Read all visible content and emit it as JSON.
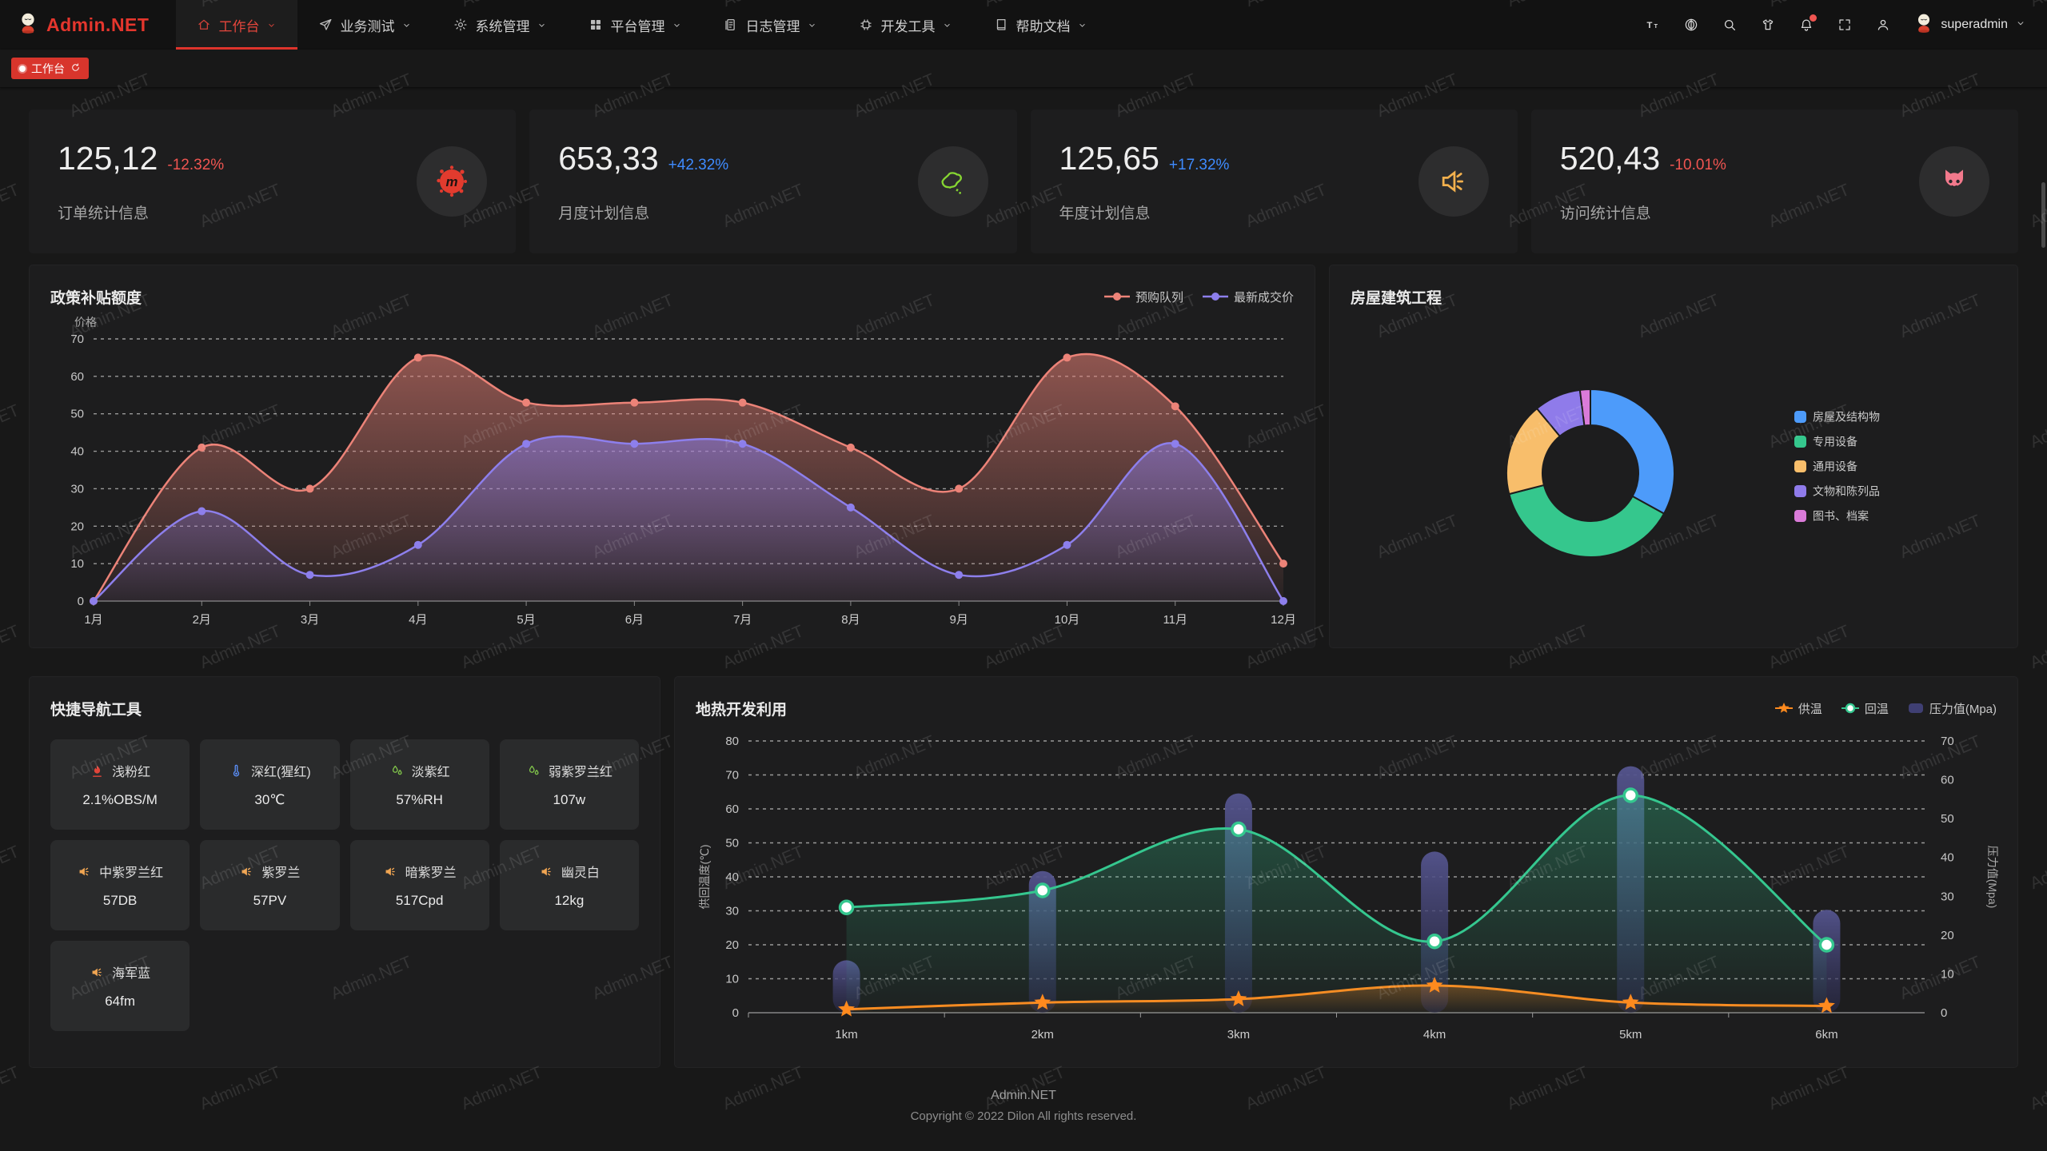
{
  "watermark": "Admin.NET",
  "colors": {
    "accent_red": "#e5362d",
    "delta_up": "#3e8bff",
    "delta_down": "#f05551",
    "panel_bg": "#1d1d1e"
  },
  "topnav": {
    "logo_text": "Admin.NET",
    "menus": [
      {
        "label": "工作台",
        "icon": "home-icon",
        "active": true
      },
      {
        "label": "业务测试",
        "icon": "send-icon",
        "active": false
      },
      {
        "label": "系统管理",
        "icon": "gear-icon",
        "active": false
      },
      {
        "label": "平台管理",
        "icon": "grid-icon",
        "active": false
      },
      {
        "label": "日志管理",
        "icon": "log-icon",
        "active": false
      },
      {
        "label": "开发工具",
        "icon": "chip-icon",
        "active": false
      },
      {
        "label": "帮助文档",
        "icon": "book-icon",
        "active": false
      }
    ],
    "tools": [
      "font-size-icon",
      "language-icon",
      "search-icon",
      "theme-icon",
      "bell-icon",
      "fullscreen-icon",
      "person-icon"
    ],
    "user": "superadmin"
  },
  "tabbar": {
    "active_tab": "工作台"
  },
  "stat_cards": [
    {
      "value": "125,12",
      "delta": "-12.32%",
      "trend": "down",
      "label": "订单统计信息",
      "icon": "meetup-icon"
    },
    {
      "value": "653,33",
      "delta": "+42.32%",
      "trend": "up",
      "label": "月度计划信息",
      "icon": "china-map-icon"
    },
    {
      "value": "125,65",
      "delta": "+17.32%",
      "trend": "up",
      "label": "年度计划信息",
      "icon": "speaker-stat-icon"
    },
    {
      "value": "520,43",
      "delta": "-10.01%",
      "trend": "down",
      "label": "访问统计信息",
      "icon": "cat-icon"
    }
  ],
  "chart_data": [
    {
      "id": "policy-subsidy",
      "type": "area",
      "title": "政策补贴额度",
      "ylabel": "价格",
      "ylim": [
        0,
        70
      ],
      "grid": true,
      "legend_position": "top-right",
      "categories": [
        "1月",
        "2月",
        "3月",
        "4月",
        "5月",
        "6月",
        "7月",
        "8月",
        "9月",
        "10月",
        "11月",
        "12月"
      ],
      "series": [
        {
          "name": "预购队列",
          "color": "#ec8378",
          "values": [
            0,
            41,
            30,
            65,
            53,
            53,
            53,
            41,
            30,
            65,
            52,
            10
          ]
        },
        {
          "name": "最新成交价",
          "color": "#8d7fec",
          "values": [
            0,
            24,
            7,
            15,
            42,
            42,
            42,
            25,
            7,
            15,
            42,
            0
          ]
        }
      ]
    },
    {
      "id": "housing-construction",
      "type": "pie",
      "title": "房屋建筑工程",
      "legend_position": "right",
      "labels": [
        "房屋及结构物",
        "专用设备",
        "通用设备",
        "文物和陈列品",
        "图书、档案"
      ],
      "values": [
        33,
        38,
        18,
        9,
        2
      ],
      "colors": [
        "#4d9bfa",
        "#35c78d",
        "#f8be6b",
        "#8f7bea",
        "#da7bd9"
      ]
    },
    {
      "id": "geothermal",
      "type": "mixed",
      "title": "地热开发利用",
      "legend_position": "top-right",
      "categories": [
        "1km",
        "2km",
        "3km",
        "4km",
        "5km",
        "6km"
      ],
      "ylabel_left": "供回温度(℃)",
      "ylabel_right": "压力值(Mpa)",
      "ylim_left": [
        0,
        80
      ],
      "ylim_right": [
        0,
        70
      ],
      "series": [
        {
          "name": "供温",
          "type": "line",
          "axis": "left",
          "marker": "star",
          "color": "#ff8a1e",
          "values": [
            1,
            3,
            4,
            8,
            3,
            2
          ]
        },
        {
          "name": "回温",
          "type": "line",
          "axis": "left",
          "marker": "circle",
          "color": "#35c78f",
          "values": [
            31,
            36,
            54,
            21,
            64,
            20
          ]
        },
        {
          "name": "压力值(Mpa)",
          "type": "bar",
          "axis": "right",
          "color": "#4a4a85",
          "values": [
            10,
            33,
            53,
            38,
            60,
            23
          ]
        }
      ]
    }
  ],
  "quick_nav": {
    "title": "快捷导航工具",
    "items": [
      {
        "label": "浅粉红",
        "value": "2.1%OBS/M",
        "icon": "fire-icon",
        "icon_color": "#e0453a"
      },
      {
        "label": "深红(猩红)",
        "value": "30℃",
        "icon": "thermometer-icon",
        "icon_color": "#5b8ff9"
      },
      {
        "label": "淡紫红",
        "value": "57%RH",
        "icon": "drops-icon",
        "icon_color": "#7fc24a"
      },
      {
        "label": "弱紫罗兰红",
        "value": "107w",
        "icon": "drops-icon",
        "icon_color": "#7fc24a"
      },
      {
        "label": "中紫罗兰红",
        "value": "57DB",
        "icon": "speaker-icon",
        "icon_color": "#f0a552"
      },
      {
        "label": "紫罗兰",
        "value": "57PV",
        "icon": "speaker-icon",
        "icon_color": "#f0a552"
      },
      {
        "label": "暗紫罗兰",
        "value": "517Cpd",
        "icon": "speaker-icon",
        "icon_color": "#f0a552"
      },
      {
        "label": "幽灵白",
        "value": "12kg",
        "icon": "speaker-icon",
        "icon_color": "#f0a552"
      },
      {
        "label": "海军蓝",
        "value": "64fm",
        "icon": "speaker-icon",
        "icon_color": "#f0a552"
      }
    ]
  },
  "footer": {
    "line1": "Admin.NET",
    "line2": "Copyright © 2022 Dilon All rights reserved."
  }
}
